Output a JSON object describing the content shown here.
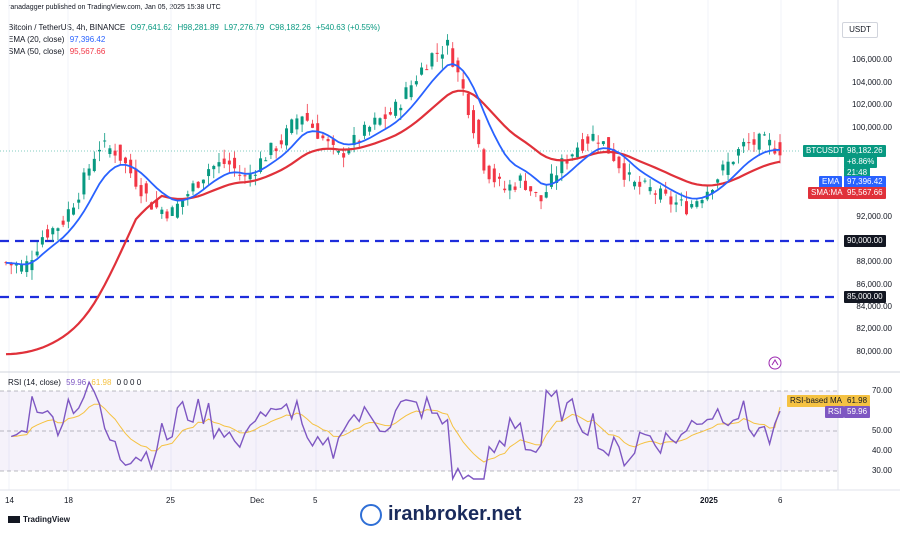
{
  "header": {
    "published": "ranadagger published on TradingView.com, Jan 05, 2025 15:38 UTC",
    "symbol": "Bitcoin / TetherUS, 4h, BINANCE",
    "open": "O97,641.62",
    "high": "H98,281.89",
    "low": "L97,276.79",
    "close": "C98,182.26",
    "change": "+540.63 (+0.55%)",
    "ema_label": "EMA (20, close)",
    "ema_value": "97,396.42",
    "sma_label": "SMA (50, close)",
    "sma_value": "95,567.66",
    "rsi_label": "RSI (14, close)",
    "rsi_value": "59.96",
    "rsi_ma_value": "61.98",
    "rsi_zeros": "0 0 0 0"
  },
  "currency": "USDT",
  "price_axis": [
    "106,000.00",
    "104,000.00",
    "102,000.00",
    "100,000.00",
    "92,000.00",
    "88,000.00",
    "86,000.00",
    "84,000.00",
    "82,000.00",
    "80,000.00"
  ],
  "tags": {
    "btc_label": "BTCUSDT",
    "btc_price": "98,182.26",
    "btc_change": "+8.86%",
    "btc_time": "21:48",
    "ema_label": "EMA",
    "ema_value": "97,396.42",
    "sma_label": "SMA:MA",
    "sma_value": "95,567.66",
    "level_90": "90,000.00",
    "level_85": "85,000.00",
    "rsi_ma_label": "RSI-based MA",
    "rsi_ma_value": "61.98",
    "rsi_label": "RSI",
    "rsi_value": "59.96"
  },
  "rsi_axis": [
    "70.00",
    "50.00",
    "40.00",
    "30.00"
  ],
  "time_axis": [
    "14",
    "18",
    "25",
    "Dec",
    "5",
    "23",
    "27",
    "2025",
    "6"
  ],
  "footer": {
    "brand": "TradingView",
    "watermark": "iranbroker.net"
  },
  "colors": {
    "up": "#089981",
    "down": "#f23645",
    "ema": "#2962ff",
    "sma": "#e0313a",
    "level": "#1e2ddb",
    "rsi": "#7e57c2",
    "rsi_ma": "#f5c242"
  },
  "chart_data": {
    "type": "line",
    "title": "Bitcoin / TetherUS, 4h, BINANCE",
    "ylim": [
      79000,
      108000
    ],
    "x": [
      "14",
      "18",
      "25",
      "Dec",
      "5",
      "23",
      "27",
      "2025",
      "6"
    ],
    "series": [
      {
        "name": "Bitcoin / TetherUS",
        "values": [
          88500,
          90500,
          93500,
          96500,
          98500,
          95500,
          94500,
          93500,
          98182
        ]
      },
      {
        "name": "EMA (20, close)",
        "values": [
          87000,
          90000,
          93500,
          96000,
          97500,
          95000,
          95000,
          93500,
          97396
        ]
      },
      {
        "name": "SMA (50, close)",
        "values": [
          80000,
          88500,
          94000,
          95500,
          97500,
          98500,
          96000,
          94500,
          95568
        ]
      }
    ],
    "levels": [
      90000,
      85000
    ],
    "rsi": {
      "ylim": [
        20,
        80
      ],
      "guides": [
        70,
        50,
        30
      ],
      "rsi": 59.96,
      "ma": 61.98
    }
  }
}
